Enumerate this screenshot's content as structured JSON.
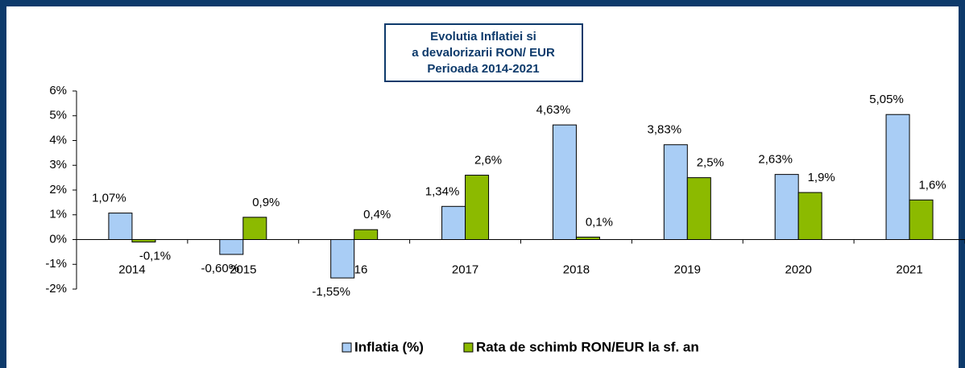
{
  "chart_data": {
    "type": "bar",
    "title": [
      "Evolutia Inflatiei si",
      "a devalorizarii RON/ EUR",
      "Perioada 2014-2021"
    ],
    "categories": [
      "2014",
      "2015",
      "2016",
      "2017",
      "2018",
      "2019",
      "2020",
      "2021"
    ],
    "series": [
      {
        "name": "Inflatia (%)",
        "color": "#a9cdf5",
        "values": [
          1.07,
          -0.6,
          -1.55,
          1.34,
          4.63,
          3.83,
          2.63,
          5.05
        ],
        "value_labels": [
          "1,07%",
          "-0,60%",
          "-1,55%",
          "1,34%",
          "4,63%",
          "3,83%",
          "2,63%",
          "5,05%"
        ]
      },
      {
        "name": "Rata de schimb RON/EUR la sf. an",
        "color": "#8cba00",
        "values": [
          -0.1,
          0.9,
          0.4,
          2.6,
          0.1,
          2.5,
          1.9,
          1.6
        ],
        "value_labels": [
          "-0,1%",
          "0,9%",
          "0,4%",
          "2,6%",
          "0,1%",
          "2,5%",
          "1,9%",
          "1,6%"
        ]
      }
    ],
    "ylim": [
      -2,
      6
    ],
    "yticks": [
      {
        "value": -2,
        "label": "-2%"
      },
      {
        "value": -1,
        "label": "-1%"
      },
      {
        "value": 0,
        "label": "0%"
      },
      {
        "value": 1,
        "label": "1%"
      },
      {
        "value": 2,
        "label": "2%"
      },
      {
        "value": 3,
        "label": "3%"
      },
      {
        "value": 4,
        "label": "4%"
      },
      {
        "value": 5,
        "label": "5%"
      },
      {
        "value": 6,
        "label": "6%"
      }
    ],
    "legend": "bottom"
  }
}
